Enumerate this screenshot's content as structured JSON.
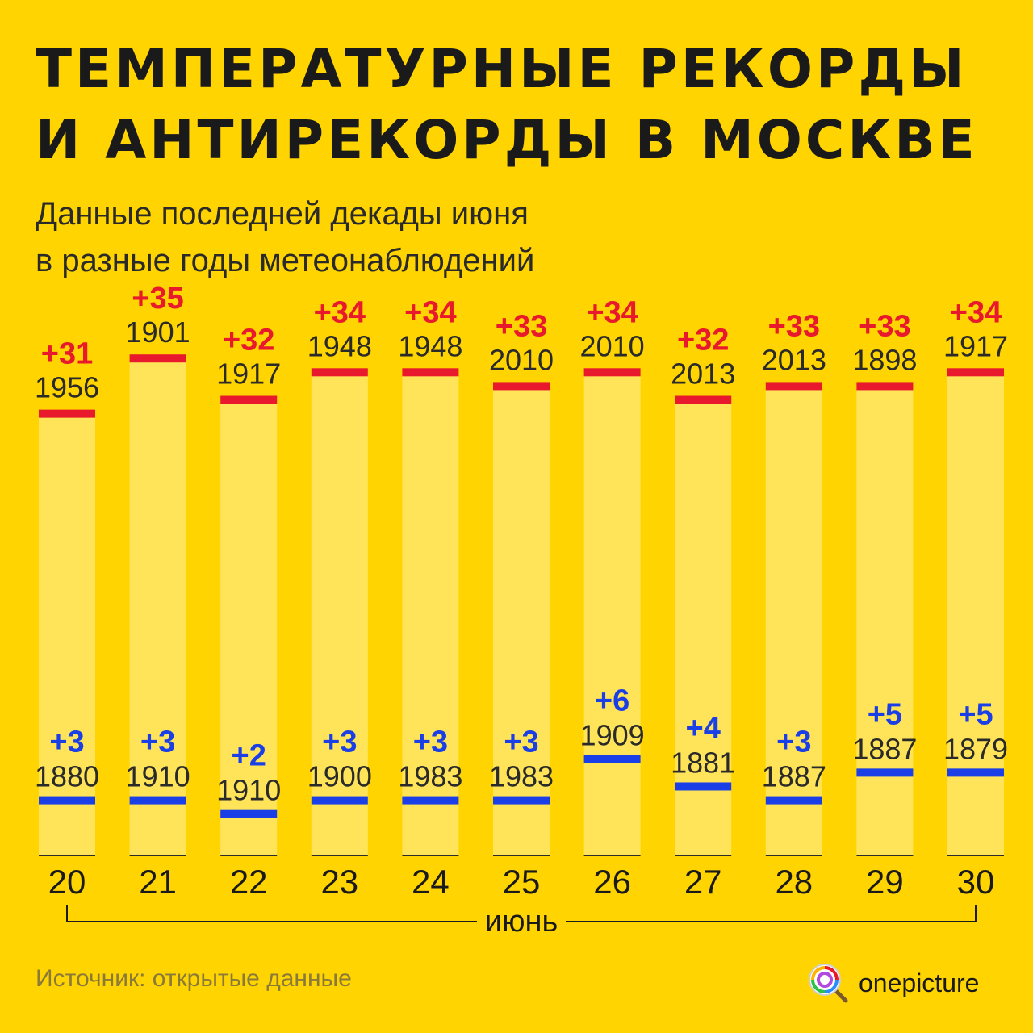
{
  "header": {
    "title_line1": "ТЕМПЕРАТУРНЫЕ РЕКОРДЫ",
    "title_line2": "И АНТИРЕКОРДЫ В МОСКВЕ",
    "subtitle_line1": "Данные последней декады июня",
    "subtitle_line2": "в разные годы метеонаблюдений"
  },
  "footer": {
    "source": "Источник: открытые данные",
    "brand": "onepicture",
    "brand_icon": "lollipop-magnifier-icon"
  },
  "colors": {
    "background": "#FFD400",
    "column": "#FFE45A",
    "record": "#E8192C",
    "antirecord": "#1A3FE6",
    "text": "#1a1a1a"
  },
  "chart_data": {
    "type": "bar",
    "xlabel": "июнь",
    "ylabel": "",
    "categories": [
      "20",
      "21",
      "22",
      "23",
      "24",
      "25",
      "26",
      "27",
      "28",
      "29",
      "30"
    ],
    "ylim": [
      -1,
      37
    ],
    "series": [
      {
        "values": [
          31,
          35,
          32,
          34,
          34,
          33,
          34,
          32,
          33,
          33,
          34
        ],
        "labels": [
          "+31",
          "+35",
          "+32",
          "+34",
          "+34",
          "+33",
          "+34",
          "+32",
          "+33",
          "+33",
          "+34"
        ],
        "years": [
          "1956",
          "1901",
          "1917",
          "1948",
          "1948",
          "2010",
          "2010",
          "2013",
          "2013",
          "1898",
          "1917"
        ]
      },
      {
        "values": [
          3,
          3,
          2,
          3,
          3,
          3,
          6,
          4,
          3,
          5,
          5
        ],
        "labels": [
          "+3",
          "+3",
          "+2",
          "+3",
          "+3",
          "+3",
          "+6",
          "+4",
          "+3",
          "+5",
          "+5"
        ],
        "years": [
          "1880",
          "1910",
          "1910",
          "1900",
          "1983",
          "1983",
          "1909",
          "1881",
          "1887",
          "1887",
          "1879"
        ]
      }
    ]
  }
}
